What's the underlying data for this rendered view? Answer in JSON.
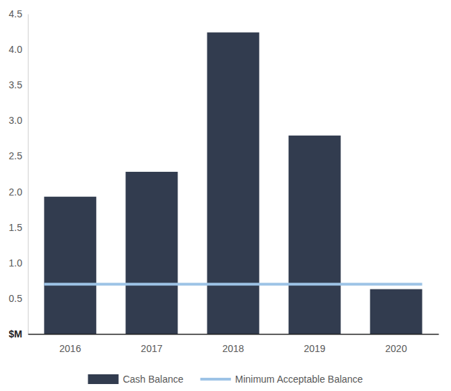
{
  "chart_data": {
    "type": "bar",
    "categories": [
      "2016",
      "2017",
      "2018",
      "2019",
      "2020"
    ],
    "series": [
      {
        "name": "Cash Balance",
        "type": "bar",
        "color": "#323c4f",
        "values": [
          1.93,
          2.28,
          4.24,
          2.79,
          0.63
        ]
      },
      {
        "name": "Minimum Acceptable Balance",
        "type": "line",
        "color": "#9dc3e6",
        "values": [
          0.7,
          0.7,
          0.7,
          0.7,
          0.7
        ]
      }
    ],
    "ylim": [
      0,
      4.5
    ],
    "yticks": [
      {
        "value": 0,
        "label": "$M"
      },
      0.5,
      {
        "value": 1,
        "label": "1.0"
      },
      1.5,
      {
        "value": 2,
        "label": "2.0"
      },
      2.5,
      {
        "value": 3,
        "label": "3.0"
      },
      3.5,
      {
        "value": 4,
        "label": "4.0"
      },
      4.5
    ],
    "grid": false,
    "legend": "bottom"
  }
}
